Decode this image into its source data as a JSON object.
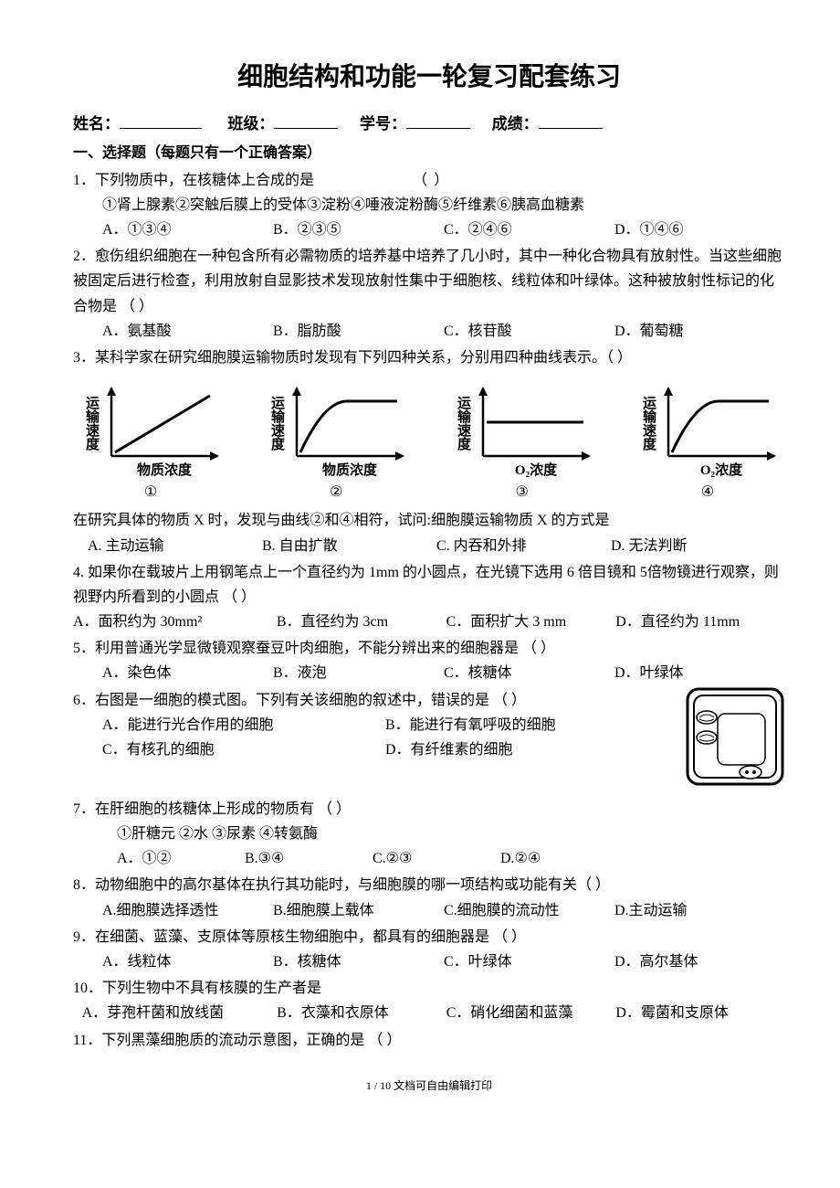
{
  "title": "细胞结构和功能一轮复习配套练习",
  "info": {
    "name_label": "姓名：",
    "class_label": "班级：",
    "sid_label": "学号：",
    "score_label": "成绩："
  },
  "section1_heading": "一、选择题（每题只有一个正确答案）",
  "q1": {
    "stem": "1．下列物质中，在核糖体上合成的是",
    "paren": "（        ）",
    "sub": "①肾上腺素②突触后膜上的受体③淀粉④唾液淀粉酶⑤纤维素⑥胰高血糖素",
    "A": "A．①③④",
    "B": "B．②③⑤",
    "C": "C．②④⑥",
    "D": "D．①④⑥"
  },
  "q2": {
    "stem": "2．愈伤组织细胞在一种包含所有必需物质的培养基中培养了几小时，其中一种化合物具有放射性。当这些细胞被固定后进行检查，利用放射自显影技术发现放射性集中于细胞核、线粒体和叶绿体。这种被放射性标记的化合物是    （         ）",
    "A": "A．氨基酸",
    "B": "B．脂肪酸",
    "C": "C．核苷酸",
    "D": "D．葡萄糖"
  },
  "q3": {
    "stem": "3．某科学家在研究细胞膜运输物质时发现有下列四种关系，分别用四种曲线表示。（     ）",
    "charts": {
      "stroke": "#000000",
      "width": 170,
      "height": 110,
      "ylabel": "运输速度",
      "xlabels": [
        "物质浓度",
        "物质浓度",
        "O₂浓度",
        "O₂浓度"
      ],
      "caps": [
        "①",
        "②",
        "③",
        "④"
      ],
      "curves": [
        {
          "type": "linear"
        },
        {
          "type": "saturate"
        },
        {
          "type": "flat"
        },
        {
          "type": "saturate"
        }
      ]
    },
    "stem2": "在研究具体的物质 X 时，发现与曲线②和④相符，试问:细胞膜运输物质 X 的方式是",
    "A": "A. 主动运输",
    "B": "B. 自由扩散",
    "C": "C. 内吞和外排",
    "D": "D. 无法判断"
  },
  "q4": {
    "stem": "4. 如果你在载玻片上用钢笔点上一个直径约为 1mm 的小圆点，在光镜下选用 6 倍目镜和 5倍物镜进行观察，则视野内所看到的小圆点     （      ）",
    "A": "A．面积约为 30mm²",
    "B": "B．直径约为 3cm",
    "C": "C．面积扩大 3 mm",
    "D": "D．直径约为 11mm"
  },
  "q5": {
    "stem": "5．利用普通光学显微镜观察蚕豆叶肉细胞，不能分辨出来的细胞器是   （       ）",
    "A": "A．染色体",
    "B": "B．液泡",
    "C": "C．核糖体",
    "D": "D．叶绿体"
  },
  "q6": {
    "stem": "6．右图是一细胞的模式图。下列有关该细胞的叙述中，错误的是  （          ）",
    "A": "A．能进行光合作用的细胞",
    "B": "B．能进行有氧呼吸的细胞",
    "C": "C．有核孔的细胞",
    "D": "D．有纤维素的细胞"
  },
  "q7": {
    "stem": "7．在肝细胞的核糖体上形成的物质有    （       ）",
    "sub": "①肝糖元         ②水         ③尿素        ④转氨酶",
    "A": "A．①②",
    "B": "B.③④",
    "C": "C.②③",
    "D": "D.②④"
  },
  "q8": {
    "stem": "8．动物细胞中的高尔基体在执行其功能时，与细胞膜的哪一项结构或功能有关（     ）",
    "A": "A.细胞膜选择透性",
    "B": "B.细胞膜上载体",
    "C": "C.细胞膜的流动性",
    "D": "D.主动运输"
  },
  "q9": {
    "stem": "9．在细菌、蓝藻、支原体等原核生物细胞中，都具有的细胞器是    （        ）",
    "A": "A．线粒体",
    "B": "B．核糖体",
    "C": "C．叶绿体",
    "D": "D．高尔基体"
  },
  "q10": {
    "stem": "10．下列生物中不具有核膜的生产者是",
    "A": "A．芽孢杆菌和放线菌",
    "B": "B．衣藻和衣原体",
    "C": "C．硝化细菌和蓝藻",
    "D": "D．霉菌和支原体"
  },
  "q11": {
    "stem": "11．下列黑藻细胞质的流动示意图，正确的是       （        ）"
  },
  "footer": "1 / 10 文档可自由编辑打印"
}
